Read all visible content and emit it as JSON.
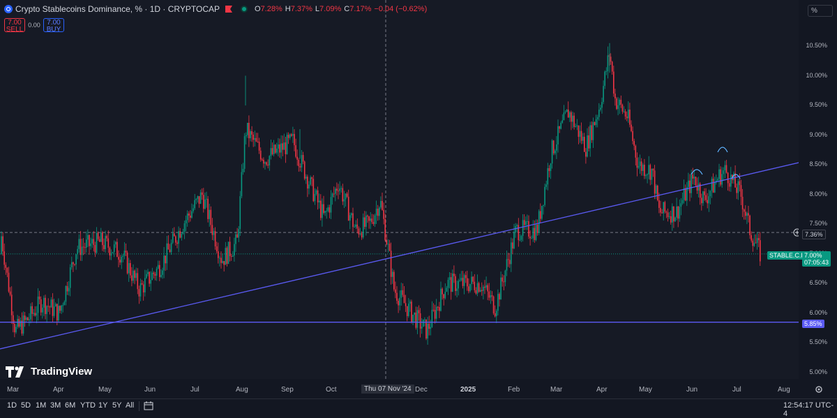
{
  "header": {
    "title": "Crypto Stablecoins Dominance, % · 1D · CRYPTOCAP",
    "ohlc": [
      {
        "k": "O",
        "v": "7.28%"
      },
      {
        "k": "H",
        "v": "7.37%"
      },
      {
        "k": "L",
        "v": "7.09%"
      },
      {
        "k": "C",
        "v": "7.17%"
      }
    ],
    "change": "−0.04 (−0.62%)"
  },
  "trade": {
    "sell_price": "7.00",
    "sell_label": "SELL",
    "spread": "0.00",
    "buy_price": "7.00",
    "buy_label": "BUY"
  },
  "scale_mode": "%",
  "price_axis": [
    "10.50%",
    "10.00%",
    "9.50%",
    "9.00%",
    "8.50%",
    "8.00%",
    "7.50%",
    "7.00%",
    "6.50%",
    "6.00%",
    "5.50%",
    "5.00%"
  ],
  "markers": {
    "crosshair_price": "7.36%",
    "symbol": "STABLE.C.D",
    "last_price": "7.00%",
    "countdown": "07:05:43",
    "hline_price": "5.85%"
  },
  "time_axis": [
    "Mar",
    "Apr",
    "May",
    "Jun",
    "Jul",
    "Aug",
    "Sep",
    "Oct",
    "Thu 07 Nov '24",
    "Dec",
    "2025",
    "Feb",
    "Mar",
    "Apr",
    "May",
    "Jun",
    "Jul",
    "Aug"
  ],
  "ranges": [
    "1D",
    "5D",
    "1M",
    "3M",
    "6M",
    "YTD",
    "1Y",
    "5Y",
    "All"
  ],
  "clock": "12:54:17 UTC-4",
  "brand": "TradingView",
  "colors": {
    "up": "#089981",
    "down": "#f23645",
    "line": "#5b5bf5",
    "bg": "#161a25"
  },
  "chart_data": {
    "type": "candlestick",
    "title": "Crypto Stablecoins Dominance, %",
    "y_unit": "%",
    "ylim": [
      4.85,
      10.85
    ],
    "x_labels": [
      "Mar",
      "Apr",
      "May",
      "Jun",
      "Jul",
      "Aug",
      "Sep",
      "Oct",
      "Nov",
      "Dec",
      "2025",
      "Feb",
      "Mar",
      "Apr",
      "May",
      "Jun",
      "Jul",
      "Aug"
    ],
    "close_path": [
      {
        "month": "Mar 2024",
        "close": 7.3
      },
      {
        "month": "mid Mar",
        "close": 5.7
      },
      {
        "month": "Apr",
        "close": 6.2
      },
      {
        "month": "mid Apr",
        "close": 7.1
      },
      {
        "month": "May",
        "close": 7.2
      },
      {
        "month": "Jun",
        "close": 6.4
      },
      {
        "month": "Jul",
        "close": 7.5
      },
      {
        "month": "late Jul",
        "close": 6.9
      },
      {
        "month": "Aug",
        "close": 9.1
      },
      {
        "month": "Sep",
        "close": 8.9
      },
      {
        "month": "Oct",
        "close": 7.6
      },
      {
        "month": "Nov 07",
        "close": 7.5
      },
      {
        "month": "Dec",
        "close": 5.7
      },
      {
        "month": "Jan 2025",
        "close": 6.5
      },
      {
        "month": "Feb",
        "close": 7.4
      },
      {
        "month": "Mar",
        "close": 9.4
      },
      {
        "month": "Apr",
        "close": 10.4
      },
      {
        "month": "mid Apr",
        "close": 9.3
      },
      {
        "month": "May",
        "close": 7.7
      },
      {
        "month": "Jun",
        "close": 8.3
      },
      {
        "month": "Jul",
        "close": 8.1
      },
      {
        "month": "mid Jul",
        "close": 7.0
      }
    ],
    "horizontal_line": 5.85,
    "trend_line": {
      "from": {
        "month": "Mar 2024",
        "value": 5.4
      },
      "to": {
        "month": "Aug 2025",
        "value": 8.55
      }
    },
    "last_value": 7.0,
    "crosshair_value": 7.36,
    "grid": false
  }
}
